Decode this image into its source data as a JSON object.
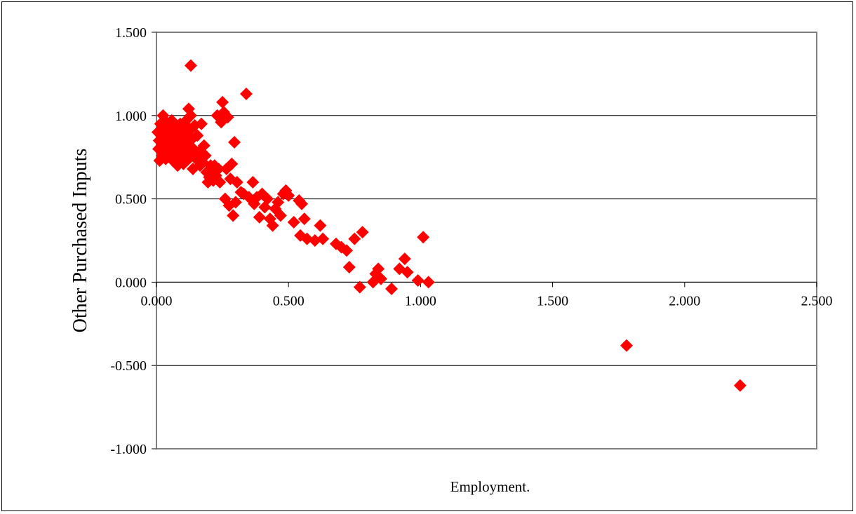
{
  "chart_data": {
    "type": "scatter",
    "xlabel": "Employment.",
    "ylabel": "Other Purchased Inputs",
    "xlim": [
      0,
      2.5
    ],
    "ylim": [
      -1,
      1.5
    ],
    "x_ticks": [
      "0.000",
      "0.500",
      "1.000",
      "1.500",
      "2.000",
      "2.500"
    ],
    "y_ticks": [
      "1.500",
      "1.000",
      "0.500",
      "0.000",
      "-0.500",
      "-1.000"
    ],
    "grid": "horizontal",
    "legend": "none",
    "marker": "diamond",
    "marker_color": "#ff0000",
    "series": [
      {
        "points": [
          [
            0.005,
            0.9
          ],
          [
            0.008,
            0.8
          ],
          [
            0.01,
            0.85
          ],
          [
            0.012,
            0.73
          ],
          [
            0.015,
            0.95
          ],
          [
            0.018,
            0.88
          ],
          [
            0.02,
            0.82
          ],
          [
            0.022,
            0.76
          ],
          [
            0.025,
            1.0
          ],
          [
            0.028,
            0.92
          ],
          [
            0.03,
            0.86
          ],
          [
            0.033,
            0.79
          ],
          [
            0.035,
            0.74
          ],
          [
            0.038,
            0.96
          ],
          [
            0.04,
            0.9
          ],
          [
            0.042,
            0.84
          ],
          [
            0.045,
            0.78
          ],
          [
            0.048,
            0.93
          ],
          [
            0.05,
            0.87
          ],
          [
            0.052,
            0.81
          ],
          [
            0.055,
            0.75
          ],
          [
            0.058,
            0.97
          ],
          [
            0.06,
            0.91
          ],
          [
            0.062,
            0.85
          ],
          [
            0.065,
            0.79
          ],
          [
            0.068,
            0.72
          ],
          [
            0.07,
            0.94
          ],
          [
            0.072,
            0.88
          ],
          [
            0.075,
            0.82
          ],
          [
            0.078,
            0.76
          ],
          [
            0.08,
            0.7
          ],
          [
            0.082,
            0.92
          ],
          [
            0.085,
            0.86
          ],
          [
            0.088,
            0.8
          ],
          [
            0.09,
            0.95
          ],
          [
            0.092,
            0.74
          ],
          [
            0.095,
            0.89
          ],
          [
            0.098,
            0.83
          ],
          [
            0.1,
            0.77
          ],
          [
            0.102,
            0.71
          ],
          [
            0.105,
            0.91
          ],
          [
            0.108,
            0.85
          ],
          [
            0.11,
            0.79
          ],
          [
            0.112,
            0.97
          ],
          [
            0.115,
            0.73
          ],
          [
            0.118,
            0.93
          ],
          [
            0.12,
            0.87
          ],
          [
            0.122,
            1.04
          ],
          [
            0.125,
            0.81
          ],
          [
            0.128,
            0.75
          ],
          [
            0.13,
            1.0
          ],
          [
            0.132,
            0.92
          ],
          [
            0.135,
            0.86
          ],
          [
            0.138,
            0.68
          ],
          [
            0.14,
            0.8
          ],
          [
            0.145,
            0.94
          ],
          [
            0.15,
            0.74
          ],
          [
            0.155,
            0.88
          ],
          [
            0.16,
            0.78
          ],
          [
            0.165,
            0.7
          ],
          [
            0.17,
            0.95
          ],
          [
            0.175,
            0.72
          ],
          [
            0.18,
            0.82
          ],
          [
            0.185,
            0.76
          ],
          [
            0.19,
            0.66
          ],
          [
            0.195,
            0.6
          ],
          [
            0.2,
            0.63
          ],
          [
            0.205,
            0.7
          ],
          [
            0.21,
            0.66
          ],
          [
            0.215,
            0.61
          ],
          [
            0.22,
            0.7
          ],
          [
            0.225,
            0.64
          ],
          [
            0.23,
            1.0
          ],
          [
            0.235,
            0.68
          ],
          [
            0.24,
            0.6
          ],
          [
            0.245,
            0.96
          ],
          [
            0.25,
            1.08
          ],
          [
            0.255,
            1.02
          ],
          [
            0.26,
            0.5
          ],
          [
            0.265,
            0.68
          ],
          [
            0.27,
            0.99
          ],
          [
            0.275,
            0.46
          ],
          [
            0.28,
            0.62
          ],
          [
            0.285,
            0.71
          ],
          [
            0.29,
            0.4
          ],
          [
            0.295,
            0.84
          ],
          [
            0.3,
            0.48
          ],
          [
            0.305,
            0.6
          ],
          [
            0.32,
            0.54
          ],
          [
            0.33,
            0.53
          ],
          [
            0.34,
            1.13
          ],
          [
            0.35,
            0.51
          ],
          [
            0.365,
            0.6
          ],
          [
            0.37,
            0.47
          ],
          [
            0.38,
            0.51
          ],
          [
            0.39,
            0.39
          ],
          [
            0.4,
            0.53
          ],
          [
            0.41,
            0.45
          ],
          [
            0.42,
            0.5
          ],
          [
            0.43,
            0.38
          ],
          [
            0.44,
            0.34
          ],
          [
            0.45,
            0.44
          ],
          [
            0.46,
            0.48
          ],
          [
            0.47,
            0.4
          ],
          [
            0.48,
            0.53
          ],
          [
            0.49,
            0.55
          ],
          [
            0.5,
            0.52
          ],
          [
            0.52,
            0.36
          ],
          [
            0.54,
            0.49
          ],
          [
            0.545,
            0.28
          ],
          [
            0.55,
            0.47
          ],
          [
            0.56,
            0.38
          ],
          [
            0.57,
            0.26
          ],
          [
            0.6,
            0.25
          ],
          [
            0.62,
            0.34
          ],
          [
            0.63,
            0.26
          ],
          [
            0.68,
            0.23
          ],
          [
            0.7,
            0.21
          ],
          [
            0.72,
            0.19
          ],
          [
            0.73,
            0.09
          ],
          [
            0.75,
            0.26
          ],
          [
            0.77,
            -0.03
          ],
          [
            0.78,
            0.3
          ],
          [
            0.82,
            0.0
          ],
          [
            0.83,
            0.05
          ],
          [
            0.84,
            0.08
          ],
          [
            0.85,
            0.02
          ],
          [
            0.89,
            -0.04
          ],
          [
            0.92,
            0.08
          ],
          [
            0.94,
            0.14
          ],
          [
            0.95,
            0.06
          ],
          [
            0.99,
            0.01
          ],
          [
            1.01,
            0.27
          ],
          [
            1.03,
            0.0
          ],
          [
            0.13,
            1.3
          ],
          [
            1.78,
            -0.38
          ],
          [
            2.21,
            -0.62
          ]
        ]
      }
    ]
  }
}
